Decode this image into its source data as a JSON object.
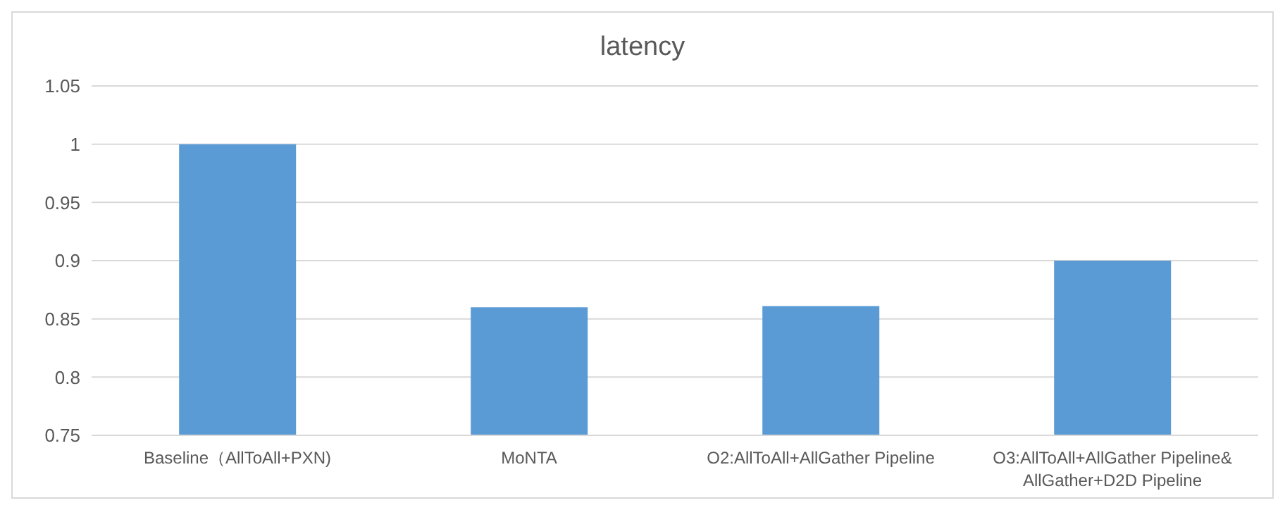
{
  "chart_data": {
    "type": "bar",
    "title": "latency",
    "categories": [
      "Baseline（AllToAll+PXN)",
      "MoNTA",
      "O2:AllToAll+AllGather Pipeline",
      "O3:AllToAll+AllGather Pipeline& AllGather+D2D Pipeline"
    ],
    "values": [
      1.0,
      0.86,
      0.861,
      0.9
    ],
    "color": "#5b9bd5",
    "ylim": [
      0.75,
      1.05
    ],
    "yticks": [
      0.75,
      0.8,
      0.85,
      0.9,
      0.95,
      1,
      1.05
    ],
    "grid": "y",
    "legend": false
  }
}
